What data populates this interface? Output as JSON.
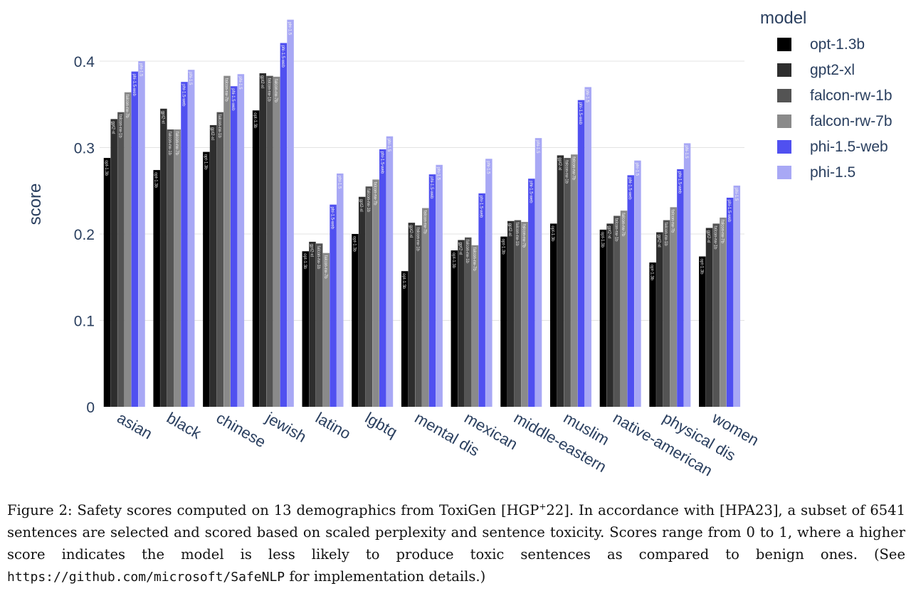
{
  "chart_data": {
    "type": "bar",
    "ylabel": "score",
    "ylim": [
      0,
      0.45
    ],
    "yticks": [
      "0",
      "0.1",
      "0.2",
      "0.3",
      "0.4"
    ],
    "grid": true,
    "legend_title": "model",
    "legend_position": "top-right",
    "categories": [
      "asian",
      "black",
      "chinese",
      "jewish",
      "latino",
      "lgbtq",
      "mental dis",
      "mexican",
      "middle-eastern",
      "muslim",
      "native-american",
      "physical dis",
      "women"
    ],
    "series": [
      {
        "name": "opt-1.3b",
        "color": "#000000",
        "values": [
          0.288,
          0.274,
          0.295,
          0.343,
          0.18,
          0.2,
          0.157,
          0.181,
          0.197,
          0.212,
          0.205,
          0.167,
          0.174
        ]
      },
      {
        "name": "gpt2-xl",
        "color": "#2e2e2e",
        "values": [
          0.333,
          0.345,
          0.326,
          0.386,
          0.191,
          0.243,
          0.213,
          0.193,
          0.215,
          0.291,
          0.212,
          0.202,
          0.207
        ]
      },
      {
        "name": "falcon-rw-1b",
        "color": "#545454",
        "values": [
          0.341,
          0.321,
          0.341,
          0.383,
          0.189,
          0.255,
          0.21,
          0.196,
          0.216,
          0.288,
          0.221,
          0.216,
          0.212
        ]
      },
      {
        "name": "falcon-rw-7b",
        "color": "#8a8a8a",
        "values": [
          0.364,
          0.321,
          0.383,
          0.382,
          0.178,
          0.263,
          0.23,
          0.187,
          0.214,
          0.292,
          0.227,
          0.231,
          0.219
        ]
      },
      {
        "name": "phi-1.5-web",
        "color": "#5050f0",
        "values": [
          0.388,
          0.376,
          0.371,
          0.421,
          0.234,
          0.298,
          0.269,
          0.247,
          0.264,
          0.355,
          0.268,
          0.275,
          0.242
        ]
      },
      {
        "name": "phi-1.5",
        "color": "#a8a8f5",
        "values": [
          0.4,
          0.39,
          0.385,
          0.448,
          0.27,
          0.313,
          0.28,
          0.287,
          0.311,
          0.37,
          0.285,
          0.305,
          0.256
        ]
      }
    ]
  },
  "caption": {
    "prefix": "Figure 2: Safety scores computed on 13 demographics from ToxiGen [HGP",
    "sup": "+",
    "middle": "22]. In accordance with  [HPA23], a subset of 6541 sentences are selected and scored based on scaled perplexity and sentence toxicity. Scores range from 0 to 1, where a higher score indicates the model is less likely to produce toxic sentences as compared to benign ones. (See ",
    "url": "https://github.com/microsoft/SafeNLP",
    "suffix": " for implementation details.)"
  }
}
